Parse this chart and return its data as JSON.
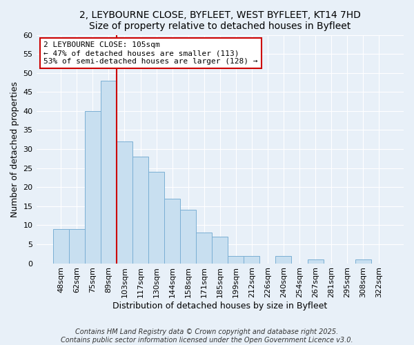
{
  "title": "2, LEYBOURNE CLOSE, BYFLEET, WEST BYFLEET, KT14 7HD",
  "subtitle": "Size of property relative to detached houses in Byfleet",
  "xlabel": "Distribution of detached houses by size in Byfleet",
  "ylabel": "Number of detached properties",
  "categories": [
    "48sqm",
    "62sqm",
    "75sqm",
    "89sqm",
    "103sqm",
    "117sqm",
    "130sqm",
    "144sqm",
    "158sqm",
    "171sqm",
    "185sqm",
    "199sqm",
    "212sqm",
    "226sqm",
    "240sqm",
    "254sqm",
    "267sqm",
    "281sqm",
    "295sqm",
    "308sqm",
    "322sqm"
  ],
  "values": [
    9,
    9,
    40,
    48,
    32,
    28,
    24,
    17,
    14,
    8,
    7,
    2,
    2,
    0,
    2,
    0,
    1,
    0,
    0,
    1,
    0
  ],
  "bar_color": "#c8dff0",
  "bar_edge_color": "#7aafd4",
  "vline_color": "#cc0000",
  "ylim": [
    0,
    60
  ],
  "yticks": [
    0,
    5,
    10,
    15,
    20,
    25,
    30,
    35,
    40,
    45,
    50,
    55,
    60
  ],
  "annotation_line1": "2 LEYBOURNE CLOSE: 105sqm",
  "annotation_line2": "← 47% of detached houses are smaller (113)",
  "annotation_line3": "53% of semi-detached houses are larger (128) →",
  "annotation_box_color": "#ffffff",
  "annotation_box_edge": "#cc0000",
  "footer1": "Contains HM Land Registry data © Crown copyright and database right 2025.",
  "footer2": "Contains public sector information licensed under the Open Government Licence v3.0.",
  "background_color": "#e8f0f8",
  "grid_color": "#ffffff",
  "title_fontsize": 10,
  "axis_fontsize": 9,
  "tick_fontsize": 8,
  "annotation_fontsize": 8,
  "footer_fontsize": 7
}
